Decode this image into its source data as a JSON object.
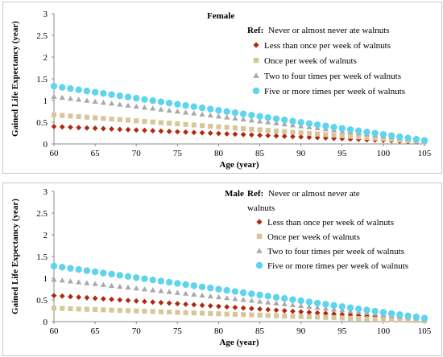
{
  "chart_data": [
    {
      "type": "scatter",
      "title": "Female",
      "xlabel": "Age (year)",
      "ylabel": "Gained Life Expectancy (year)",
      "xlim": [
        60,
        105
      ],
      "ylim": [
        0,
        3
      ],
      "xticks": [
        60,
        65,
        70,
        75,
        80,
        85,
        90,
        95,
        100,
        105
      ],
      "yticks": [
        0,
        0.5,
        1,
        1.5,
        2,
        2.5,
        3
      ],
      "ytick_labels": [
        "0",
        "0.5",
        "1",
        "1.5",
        "2",
        "2.5",
        "3"
      ],
      "legend_position": "top-right",
      "legend_ref_prefix": "Ref:",
      "legend_ref_text": "Never or almost never ate walnuts",
      "x_step": 1,
      "series": [
        {
          "name": "Less than once per week of walnuts",
          "marker": "diamond",
          "color": "#b02a10",
          "start": 0.4,
          "end": 0.04
        },
        {
          "name": "Once per week of walnuts",
          "marker": "square",
          "color": "#d8c59a",
          "start": 0.67,
          "end": 0.05
        },
        {
          "name": "Two to four times per week of walnuts",
          "marker": "triangle",
          "color": "#a9a9a9",
          "start": 1.09,
          "end": 0.07
        },
        {
          "name": "Five or more times per week of walnuts",
          "marker": "circle",
          "color": "#5fd3f0",
          "start": 1.33,
          "end": 0.08
        }
      ]
    },
    {
      "type": "scatter",
      "title": "Male",
      "xlabel": "Age (year)",
      "ylabel": "Gained Life Expectancy (year)",
      "xlim": [
        60,
        105
      ],
      "ylim": [
        0,
        3
      ],
      "xticks": [
        60,
        65,
        70,
        75,
        80,
        85,
        90,
        95,
        100,
        105
      ],
      "yticks": [
        0,
        0.5,
        1,
        1.5,
        2,
        2.5,
        3
      ],
      "ytick_labels": [
        "0",
        "0.5",
        "1",
        "1.5",
        "2",
        "2.5",
        "3"
      ],
      "legend_position": "top-right",
      "legend_ref_prefix": "Ref:",
      "legend_ref_text": "Never or almost never ate",
      "legend_ref_text_line2": "walnuts",
      "x_step": 1,
      "series": [
        {
          "name": "Less than once per week of walnuts",
          "marker": "diamond",
          "color": "#b02a10",
          "start": 0.6,
          "end": 0.04
        },
        {
          "name": "Once per week of walnuts",
          "marker": "square",
          "color": "#d8c59a",
          "start": 0.31,
          "end": 0.02
        },
        {
          "name": "Two to four times per week of walnuts",
          "marker": "triangle",
          "color": "#a9a9a9",
          "start": 0.97,
          "end": 0.06
        },
        {
          "name": "Five or more times per week of walnuts",
          "marker": "circle",
          "color": "#5fd3f0",
          "start": 1.28,
          "end": 0.08
        }
      ]
    }
  ]
}
